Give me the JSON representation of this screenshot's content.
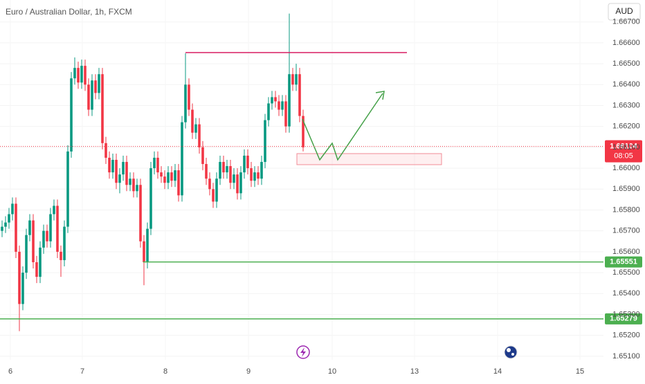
{
  "chart_data": {
    "type": "candlestick",
    "title": "Euro / Australian Dollar, 1h, FXCM",
    "currency": "AUD",
    "up_color": "#089981",
    "down_color": "#f23645",
    "ylim": [
      1.65083,
      1.66805
    ],
    "yticks": [
      {
        "value": 1.651,
        "label": "1.65100"
      },
      {
        "value": 1.652,
        "label": "1.65200"
      },
      {
        "value": 1.653,
        "label": "1.65300"
      },
      {
        "value": 1.654,
        "label": "1.65400"
      },
      {
        "value": 1.655,
        "label": "1.65500"
      },
      {
        "value": 1.656,
        "label": "1.65600"
      },
      {
        "value": 1.657,
        "label": "1.65700"
      },
      {
        "value": 1.658,
        "label": "1.65800"
      },
      {
        "value": 1.659,
        "label": "1.65900"
      },
      {
        "value": 1.66,
        "label": "1.66000"
      },
      {
        "value": 1.661,
        "label": "1.66100"
      },
      {
        "value": 1.662,
        "label": "1.66200"
      },
      {
        "value": 1.663,
        "label": "1.66300"
      },
      {
        "value": 1.664,
        "label": "1.66400"
      },
      {
        "value": 1.665,
        "label": "1.66500"
      },
      {
        "value": 1.666,
        "label": "1.66600"
      },
      {
        "value": 1.667,
        "label": "1.66700"
      }
    ],
    "xlim": [
      -0.6,
      173.8
    ],
    "xticks": [
      {
        "value": 2.4,
        "label": "6"
      },
      {
        "value": 23.2,
        "label": "7"
      },
      {
        "value": 47.2,
        "label": "8"
      },
      {
        "value": 71.2,
        "label": "9"
      },
      {
        "value": 95.4,
        "label": "10"
      },
      {
        "value": 119.2,
        "label": "13"
      },
      {
        "value": 143.2,
        "label": "14"
      },
      {
        "value": 167,
        "label": "15"
      }
    ],
    "open": [
      1.657,
      1.6572,
      1.6574,
      1.6578,
      1.6583,
      1.656,
      1.6535,
      1.655,
      1.6568,
      1.6575,
      1.6555,
      1.6548,
      1.6562,
      1.657,
      1.6565,
      1.6578,
      1.6582,
      1.656,
      1.6556,
      1.6572,
      1.6608,
      1.6643,
      1.6648,
      1.6641,
      1.6649,
      1.664,
      1.6628,
      1.6642,
      1.6636,
      1.6645,
      1.6612,
      1.6605,
      1.6598,
      1.6604,
      1.6593,
      1.6597,
      1.6603,
      1.6592,
      1.6595,
      1.6589,
      1.6592,
      1.6565,
      1.6555,
      1.6571,
      1.66,
      1.6605,
      1.6598,
      1.6596,
      1.6593,
      1.6598,
      1.6594,
      1.6599,
      1.6587,
      1.6622,
      1.664,
      1.6628,
      1.6617,
      1.6621,
      1.661,
      1.6602,
      1.6595,
      1.659,
      1.6584,
      1.6595,
      1.6603,
      1.6598,
      1.6601,
      1.6593,
      1.6597,
      1.6588,
      1.6598,
      1.6606,
      1.66,
      1.6594,
      1.6598,
      1.6595,
      1.6603,
      1.6623,
      1.6631,
      1.6634,
      1.6632,
      1.6628,
      1.6632,
      1.662,
      1.6645,
      1.664,
      1.6645,
      1.6625
    ],
    "high": [
      1.6575,
      1.6577,
      1.6581,
      1.6586,
      1.6586,
      1.6563,
      1.6553,
      1.6571,
      1.6578,
      1.6578,
      1.6558,
      1.6565,
      1.6573,
      1.6573,
      1.6581,
      1.6585,
      1.6585,
      1.6563,
      1.6575,
      1.6611,
      1.6646,
      1.6653,
      1.6651,
      1.6652,
      1.6652,
      1.6643,
      1.6645,
      1.6645,
      1.6648,
      1.6648,
      1.6615,
      1.6608,
      1.6607,
      1.6607,
      1.66,
      1.6606,
      1.6606,
      1.6598,
      1.6598,
      1.6595,
      1.6595,
      1.6568,
      1.6574,
      1.6603,
      1.6608,
      1.6608,
      1.6601,
      1.6599,
      1.6601,
      1.6601,
      1.6602,
      1.6602,
      1.6625,
      1.6655,
      1.6643,
      1.6631,
      1.6624,
      1.6624,
      1.6613,
      1.6605,
      1.6598,
      1.6593,
      1.6598,
      1.6606,
      1.6606,
      1.6604,
      1.6604,
      1.66,
      1.66,
      1.6601,
      1.6609,
      1.6609,
      1.6603,
      1.6601,
      1.6601,
      1.6606,
      1.6626,
      1.6634,
      1.6637,
      1.6637,
      1.6635,
      1.6635,
      1.6635,
      1.6674,
      1.6648,
      1.665,
      1.6648,
      1.6628
    ],
    "low": [
      1.6567,
      1.6569,
      1.6571,
      1.6575,
      1.6557,
      1.6522,
      1.6532,
      1.6547,
      1.6565,
      1.6552,
      1.6545,
      1.6545,
      1.6559,
      1.6562,
      1.6562,
      1.6575,
      1.6557,
      1.6548,
      1.6553,
      1.6569,
      1.6605,
      1.664,
      1.6638,
      1.6638,
      1.6637,
      1.6625,
      1.6625,
      1.6633,
      1.6633,
      1.6609,
      1.6602,
      1.6595,
      1.6595,
      1.659,
      1.6588,
      1.6594,
      1.6589,
      1.6589,
      1.6586,
      1.6586,
      1.6562,
      1.6544,
      1.6552,
      1.6568,
      1.6597,
      1.6595,
      1.6593,
      1.659,
      1.659,
      1.6591,
      1.6591,
      1.6584,
      1.6584,
      1.6619,
      1.6625,
      1.6614,
      1.6614,
      1.6607,
      1.6599,
      1.6592,
      1.6587,
      1.6581,
      1.6581,
      1.6592,
      1.6595,
      1.6595,
      1.659,
      1.659,
      1.6585,
      1.6585,
      1.6595,
      1.6597,
      1.6591,
      1.6591,
      1.6592,
      1.6592,
      1.66,
      1.662,
      1.6628,
      1.6629,
      1.6625,
      1.6625,
      1.6617,
      1.6617,
      1.6637,
      1.6637,
      1.6622,
      1.6608
    ],
    "close": [
      1.6572,
      1.6574,
      1.6578,
      1.6583,
      1.656,
      1.6535,
      1.655,
      1.6568,
      1.6575,
      1.6555,
      1.6548,
      1.6562,
      1.657,
      1.6565,
      1.6578,
      1.6582,
      1.656,
      1.6556,
      1.6572,
      1.6608,
      1.6643,
      1.6648,
      1.6641,
      1.6649,
      1.664,
      1.6628,
      1.6642,
      1.6636,
      1.6645,
      1.6612,
      1.6605,
      1.6598,
      1.6604,
      1.6593,
      1.6597,
      1.6603,
      1.6592,
      1.6595,
      1.6589,
      1.6592,
      1.6565,
      1.6555,
      1.6571,
      1.66,
      1.6605,
      1.6598,
      1.6596,
      1.6593,
      1.6598,
      1.6594,
      1.6599,
      1.6587,
      1.6622,
      1.664,
      1.6628,
      1.6617,
      1.6621,
      1.661,
      1.6602,
      1.6595,
      1.659,
      1.6584,
      1.6595,
      1.6603,
      1.6598,
      1.6601,
      1.6593,
      1.6597,
      1.6588,
      1.6598,
      1.6606,
      1.66,
      1.6594,
      1.6598,
      1.6595,
      1.6603,
      1.6623,
      1.6631,
      1.6634,
      1.6632,
      1.6628,
      1.6632,
      1.662,
      1.6645,
      1.664,
      1.6645,
      1.6625,
      1.661
    ],
    "current_price": {
      "value": 1.66104,
      "label": "1.66104",
      "countdown": "08:05",
      "color": "#f23645"
    },
    "levels": [
      {
        "value": 1.65551,
        "label": "1.65551",
        "color": "#4caf50"
      },
      {
        "value": 1.65279,
        "label": "1.65279",
        "color": "#4caf50"
      }
    ]
  }
}
